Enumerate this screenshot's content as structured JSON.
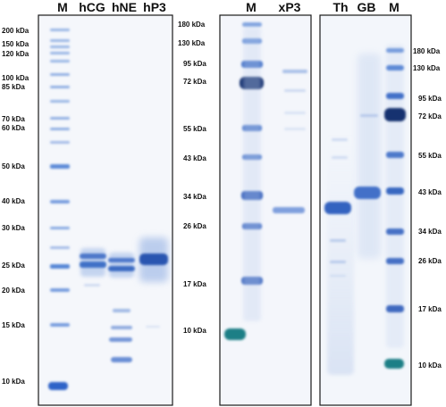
{
  "panels": [
    {
      "lanes": [
        "M",
        "hCG",
        "hNE",
        "hP3"
      ],
      "markers": [
        "200 kDa",
        "150 kDa",
        "120 kDa",
        "100 kDa",
        "85 kDa",
        "70 kDa",
        "60 kDa",
        "50 kDa",
        "40 kDa",
        "30 kDa",
        "25 kDa",
        "20 kDa",
        "15 kDa",
        "10 kDa"
      ]
    },
    {
      "lanes": [
        "M",
        "xP3"
      ],
      "markers": [
        "180 kDa",
        "130 kDa",
        "95 kDa",
        "72 kDa",
        "55 kDa",
        "43 kDa",
        "34 kDa",
        "26 kDa",
        "17 kDa",
        "10 kDa"
      ]
    },
    {
      "lanes": [
        "Th",
        "GB",
        "M"
      ],
      "markers": [
        "180 kDa",
        "130 kDa",
        "95 kDa",
        "72 kDa",
        "55 kDa",
        "43 kDa",
        "34 kDa",
        "26 kDa",
        "17 kDa",
        "10 kDa"
      ]
    }
  ],
  "colors": {
    "background": "#ffffff",
    "gel": "#f4f7fb",
    "band_dark": "#13306e",
    "band_mid": "#2f63c2",
    "band_light": "#9fb8e6",
    "teal_band": "#1f7f86"
  }
}
